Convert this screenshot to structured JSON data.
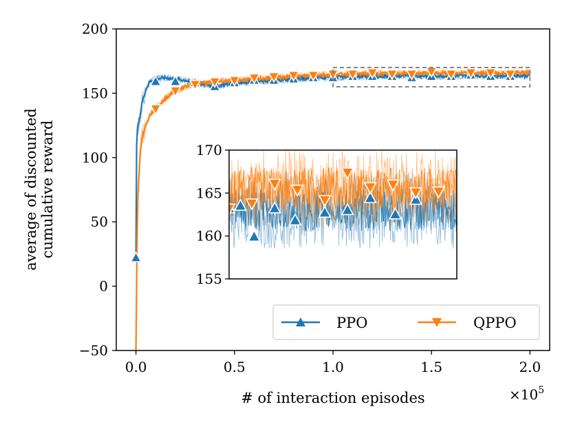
{
  "chart_data": {
    "type": "line",
    "title": "",
    "xlabel": "# of interaction episodes",
    "ylabel_lines": [
      "average of discounted",
      "cumulative reward"
    ],
    "x_multiplier": "×10",
    "x_multiplier_exp": "5",
    "xlim": [
      -0.1,
      2.1
    ],
    "ylim": [
      -50,
      200
    ],
    "xticks": [
      0.0,
      0.5,
      1.0,
      1.5,
      2.0
    ],
    "xtick_labels": [
      "0.0",
      "0.5",
      "1.0",
      "1.5",
      "2.0"
    ],
    "yticks": [
      -50,
      0,
      50,
      100,
      150,
      200
    ],
    "ytick_labels": [
      "−50",
      "0",
      "50",
      "100",
      "150",
      "200"
    ],
    "grid": false,
    "legend_position": "lower-right",
    "series": [
      {
        "name": "PPO",
        "color": "#1f77b4",
        "marker": "triangle-up",
        "x": [
          0.0,
          0.002,
          0.005,
          0.01,
          0.02,
          0.03,
          0.05,
          0.07,
          0.1,
          0.15,
          0.2,
          0.25,
          0.3,
          0.35,
          0.4,
          0.45,
          0.5,
          0.6,
          0.7,
          0.8,
          0.9,
          1.0,
          1.1,
          1.2,
          1.3,
          1.4,
          1.5,
          1.6,
          1.7,
          1.8,
          1.9,
          2.0
        ],
        "y": [
          22,
          100,
          118,
          125,
          132,
          142,
          153,
          159,
          161,
          162,
          161,
          160,
          158,
          157,
          155,
          157,
          158,
          159,
          160,
          161,
          162,
          162.5,
          163,
          163,
          163.2,
          163.3,
          163.5,
          163.5,
          163.6,
          163.6,
          163.7,
          163.8
        ],
        "marker_points": [
          {
            "x": 0.0,
            "y": 22
          },
          {
            "x": 0.1,
            "y": 159
          },
          {
            "x": 0.2,
            "y": 159
          },
          {
            "x": 0.3,
            "y": 158
          },
          {
            "x": 0.4,
            "y": 155
          },
          {
            "x": 0.5,
            "y": 158
          },
          {
            "x": 0.6,
            "y": 160
          },
          {
            "x": 0.7,
            "y": 160
          },
          {
            "x": 0.8,
            "y": 161
          },
          {
            "x": 0.9,
            "y": 162
          },
          {
            "x": 1.0,
            "y": 162
          },
          {
            "x": 1.1,
            "y": 163
          },
          {
            "x": 1.2,
            "y": 163
          },
          {
            "x": 1.3,
            "y": 163
          },
          {
            "x": 1.4,
            "y": 162
          },
          {
            "x": 1.5,
            "y": 163
          },
          {
            "x": 1.6,
            "y": 163
          },
          {
            "x": 1.7,
            "y": 164
          },
          {
            "x": 1.8,
            "y": 163
          },
          {
            "x": 1.9,
            "y": 163
          }
        ]
      },
      {
        "name": "QPPO",
        "color": "#ff7f0e",
        "marker": "triangle-down",
        "x": [
          0.0,
          0.005,
          0.01,
          0.02,
          0.03,
          0.05,
          0.07,
          0.1,
          0.15,
          0.2,
          0.25,
          0.3,
          0.35,
          0.4,
          0.5,
          0.6,
          0.7,
          0.8,
          0.9,
          1.0,
          1.1,
          1.2,
          1.3,
          1.4,
          1.5,
          1.6,
          1.7,
          1.8,
          1.9,
          2.0
        ],
        "y": [
          -50,
          30,
          70,
          100,
          115,
          125,
          133,
          138,
          146,
          152,
          155,
          157,
          158,
          159,
          160,
          161,
          162,
          163,
          164,
          164.5,
          165,
          165.2,
          165.4,
          165.5,
          165.6,
          165.7,
          165.8,
          165.8,
          165.9,
          166
        ],
        "marker_points": [
          {
            "x": 0.1,
            "y": 138
          },
          {
            "x": 0.2,
            "y": 152
          },
          {
            "x": 0.3,
            "y": 157
          },
          {
            "x": 0.4,
            "y": 159
          },
          {
            "x": 0.5,
            "y": 160
          },
          {
            "x": 0.6,
            "y": 162
          },
          {
            "x": 0.7,
            "y": 163
          },
          {
            "x": 0.8,
            "y": 164
          },
          {
            "x": 0.9,
            "y": 164
          },
          {
            "x": 1.0,
            "y": 165
          },
          {
            "x": 1.1,
            "y": 165
          },
          {
            "x": 1.2,
            "y": 166
          },
          {
            "x": 1.3,
            "y": 165
          },
          {
            "x": 1.4,
            "y": 165
          },
          {
            "x": 1.5,
            "y": 167
          },
          {
            "x": 1.6,
            "y": 165
          },
          {
            "x": 1.7,
            "y": 166
          },
          {
            "x": 1.8,
            "y": 166
          },
          {
            "x": 1.9,
            "y": 165
          }
        ]
      }
    ],
    "zoom_region": {
      "x": [
        1.0,
        2.0
      ],
      "y": [
        155,
        170
      ]
    },
    "inset": {
      "xlim": [
        1.0,
        2.0
      ],
      "ylim": [
        155,
        170
      ],
      "yticks": [
        155,
        160,
        165,
        170
      ],
      "ytick_labels": [
        "155",
        "160",
        "165",
        "170"
      ],
      "series_markers": [
        {
          "name": "PPO",
          "points": [
            {
              "x": 1.0,
              "y": 163.2
            },
            {
              "x": 1.05,
              "y": 163.5
            },
            {
              "x": 1.11,
              "y": 159.9
            },
            {
              "x": 1.2,
              "y": 163.2
            },
            {
              "x": 1.29,
              "y": 161.8
            },
            {
              "x": 1.42,
              "y": 162.7
            },
            {
              "x": 1.52,
              "y": 163.0
            },
            {
              "x": 1.62,
              "y": 164.4
            },
            {
              "x": 1.73,
              "y": 162.5
            },
            {
              "x": 1.82,
              "y": 164.2
            }
          ]
        },
        {
          "name": "QPPO",
          "points": [
            {
              "x": 1.0,
              "y": 163.2
            },
            {
              "x": 1.1,
              "y": 163.8
            },
            {
              "x": 1.2,
              "y": 166.1
            },
            {
              "x": 1.3,
              "y": 165.4
            },
            {
              "x": 1.42,
              "y": 164.2
            },
            {
              "x": 1.52,
              "y": 167.4
            },
            {
              "x": 1.62,
              "y": 165.7
            },
            {
              "x": 1.72,
              "y": 166.0
            },
            {
              "x": 1.82,
              "y": 165.1
            },
            {
              "x": 1.92,
              "y": 165.2
            }
          ]
        }
      ]
    }
  }
}
